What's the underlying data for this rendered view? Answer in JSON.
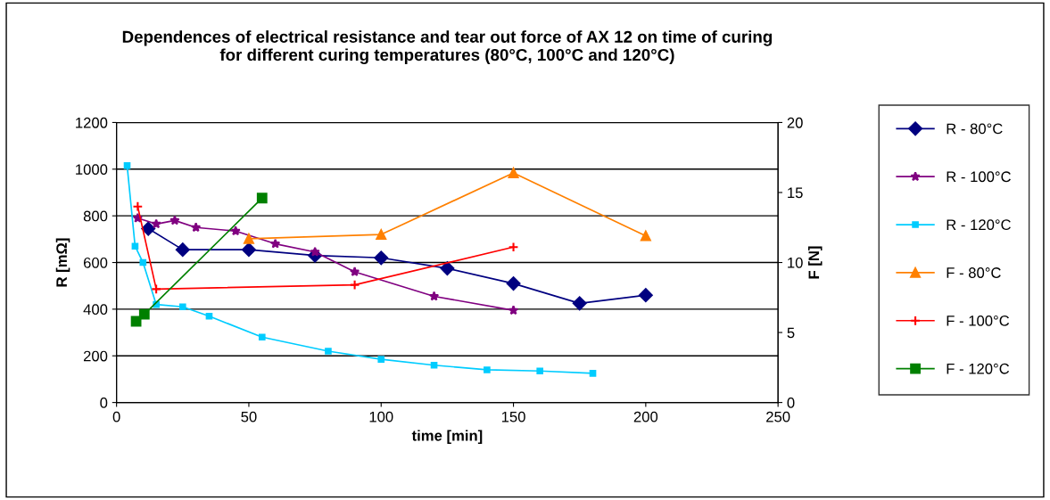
{
  "chart_data": {
    "type": "line",
    "title": "Dependences of electrical resistance and tear out force of AX 12 on time of curing\nfor different curing temperatures (80°C, 100°C and 120°C)",
    "xlabel": "time [min]",
    "ylabel": "R [mΩ]",
    "y2label": "F [N]",
    "xlim": [
      0,
      250
    ],
    "xticks": [
      0,
      50,
      100,
      150,
      200,
      250
    ],
    "ylim": [
      0,
      1200
    ],
    "yticks": [
      0,
      200,
      400,
      600,
      800,
      1000,
      1200
    ],
    "y2lim": [
      0,
      20
    ],
    "y2ticks": [
      0,
      5,
      10,
      15,
      20
    ],
    "grid": "y",
    "legend": "right",
    "series": [
      {
        "name": "R - 80°C",
        "color": "#000080",
        "marker": "diamond",
        "x": [
          12,
          25,
          50,
          75,
          100,
          125,
          150,
          175,
          200
        ],
        "values": [
          745,
          655,
          655,
          630,
          620,
          575,
          510,
          425,
          460
        ]
      },
      {
        "name": "R - 100°C",
        "color": "#800080",
        "marker": "star",
        "x": [
          8,
          15,
          22,
          30,
          45,
          60,
          75,
          90,
          120,
          150
        ],
        "values": [
          790,
          765,
          780,
          750,
          735,
          680,
          645,
          560,
          455,
          395
        ]
      },
      {
        "name": "R - 120°C",
        "color": "#00ccff",
        "marker": "square",
        "x": [
          4,
          7,
          10,
          15,
          25,
          35,
          55,
          80,
          100,
          120,
          140,
          160,
          180
        ],
        "values": [
          1015,
          670,
          600,
          420,
          410,
          370,
          280,
          220,
          185,
          160,
          140,
          135,
          125
        ]
      },
      {
        "name": "F - 80°C",
        "color": "#ff8000",
        "marker": "triangle",
        "axis": "y2",
        "x": [
          50,
          100,
          150,
          200
        ],
        "values": [
          11.7,
          12.0,
          16.4,
          11.9
        ]
      },
      {
        "name": "F - 100°C",
        "color": "#ff0000",
        "marker": "cross",
        "axis": "y2",
        "x": [
          8,
          15,
          90,
          150
        ],
        "values": [
          14.0,
          8.1,
          8.4,
          11.1
        ]
      },
      {
        "name": "F - 120°C",
        "color": "#008000",
        "marker": "square",
        "axis": "y2",
        "x": [
          7.4,
          10.5,
          55
        ],
        "values": [
          5.8,
          6.3,
          14.6
        ]
      }
    ]
  }
}
